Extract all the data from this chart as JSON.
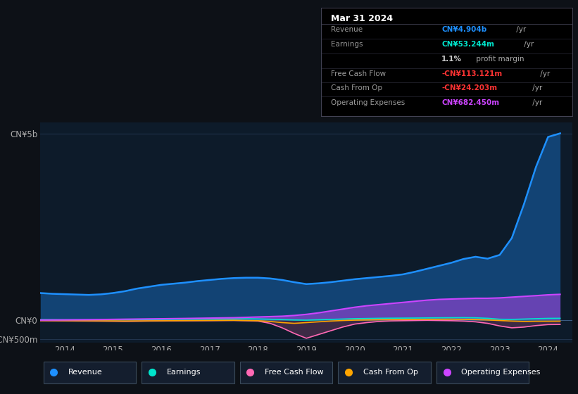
{
  "bg_color": "#0d1117",
  "plot_bg_color": "#0d1b2a",
  "grid_color": "#253a55",
  "title_box": {
    "date": "Mar 31 2024",
    "rows": [
      {
        "label": "Revenue",
        "value": "CN¥4.904b",
        "suffix": " /yr",
        "value_color": "#1e90ff"
      },
      {
        "label": "Earnings",
        "value": "CN¥53.244m",
        "suffix": " /yr",
        "value_color": "#00e5cc"
      },
      {
        "label": "",
        "value": "1.1%",
        "suffix": " profit margin",
        "value_color": "#cccccc"
      },
      {
        "label": "Free Cash Flow",
        "value": "-CN¥113.121m",
        "suffix": " /yr",
        "value_color": "#ff3333"
      },
      {
        "label": "Cash From Op",
        "value": "-CN¥24.203m",
        "suffix": " /yr",
        "value_color": "#ff3333"
      },
      {
        "label": "Operating Expenses",
        "value": "CN¥682.450m",
        "suffix": " /yr",
        "value_color": "#cc44ff"
      }
    ]
  },
  "years": [
    2013.5,
    2013.75,
    2014.0,
    2014.25,
    2014.5,
    2014.75,
    2015.0,
    2015.25,
    2015.5,
    2015.75,
    2016.0,
    2016.25,
    2016.5,
    2016.75,
    2017.0,
    2017.25,
    2017.5,
    2017.75,
    2018.0,
    2018.25,
    2018.5,
    2018.75,
    2019.0,
    2019.25,
    2019.5,
    2019.75,
    2020.0,
    2020.25,
    2020.5,
    2020.75,
    2021.0,
    2021.25,
    2021.5,
    2021.75,
    2022.0,
    2022.25,
    2022.5,
    2022.75,
    2023.0,
    2023.25,
    2023.5,
    2023.75,
    2024.0,
    2024.25
  ],
  "revenue": [
    730,
    710,
    700,
    690,
    680,
    695,
    730,
    780,
    850,
    900,
    950,
    980,
    1010,
    1050,
    1080,
    1110,
    1130,
    1140,
    1140,
    1120,
    1080,
    1020,
    970,
    990,
    1020,
    1060,
    1100,
    1130,
    1160,
    1190,
    1230,
    1300,
    1380,
    1460,
    1540,
    1640,
    1700,
    1650,
    1750,
    2200,
    3100,
    4100,
    4904,
    5000
  ],
  "earnings": [
    20,
    18,
    15,
    14,
    13,
    14,
    16,
    18,
    20,
    22,
    25,
    28,
    30,
    32,
    35,
    38,
    40,
    42,
    38,
    30,
    20,
    10,
    5,
    15,
    25,
    35,
    45,
    50,
    55,
    58,
    60,
    62,
    65,
    68,
    70,
    72,
    68,
    55,
    30,
    25,
    35,
    45,
    53,
    55
  ],
  "free_cash_flow": [
    -10,
    -12,
    -15,
    -18,
    -20,
    -22,
    -25,
    -28,
    -25,
    -20,
    -18,
    -15,
    -12,
    -10,
    -8,
    -5,
    -3,
    -10,
    -20,
    -80,
    -200,
    -350,
    -480,
    -380,
    -280,
    -180,
    -100,
    -60,
    -30,
    -15,
    -10,
    -5,
    0,
    -5,
    -10,
    -20,
    -40,
    -80,
    -150,
    -200,
    -180,
    -140,
    -113,
    -110
  ],
  "cash_from_op": [
    -5,
    -6,
    -8,
    -10,
    -12,
    -14,
    -16,
    -18,
    -16,
    -14,
    -12,
    -10,
    -8,
    -6,
    -4,
    -2,
    0,
    -5,
    -10,
    -30,
    -60,
    -80,
    -60,
    -40,
    -20,
    -5,
    5,
    10,
    15,
    18,
    20,
    22,
    25,
    28,
    30,
    25,
    20,
    10,
    -5,
    -20,
    -30,
    -25,
    -24,
    -22
  ],
  "operating_expenses": [
    8,
    10,
    12,
    15,
    18,
    22,
    26,
    30,
    34,
    38,
    42,
    46,
    50,
    55,
    60,
    65,
    70,
    80,
    90,
    100,
    110,
    130,
    160,
    200,
    250,
    300,
    350,
    390,
    420,
    450,
    480,
    510,
    540,
    560,
    570,
    580,
    590,
    590,
    600,
    620,
    640,
    660,
    682,
    695
  ],
  "ylim": [
    -600,
    5300
  ],
  "yticks": [
    -500,
    0,
    5000
  ],
  "ytick_labels": [
    "-CN¥500m",
    "CN¥0",
    "CN¥5b"
  ],
  "xtick_years": [
    2014,
    2015,
    2016,
    2017,
    2018,
    2019,
    2020,
    2021,
    2022,
    2023,
    2024
  ],
  "colors": {
    "revenue": "#1e90ff",
    "earnings": "#00e5cc",
    "free_cash_flow": "#ff69b4",
    "cash_from_op": "#ffa500",
    "operating_expenses": "#cc44ff"
  },
  "legend_items": [
    {
      "label": "Revenue",
      "color": "#1e90ff"
    },
    {
      "label": "Earnings",
      "color": "#00e5cc"
    },
    {
      "label": "Free Cash Flow",
      "color": "#ff69b4"
    },
    {
      "label": "Cash From Op",
      "color": "#ffa500"
    },
    {
      "label": "Operating Expenses",
      "color": "#cc44ff"
    }
  ]
}
